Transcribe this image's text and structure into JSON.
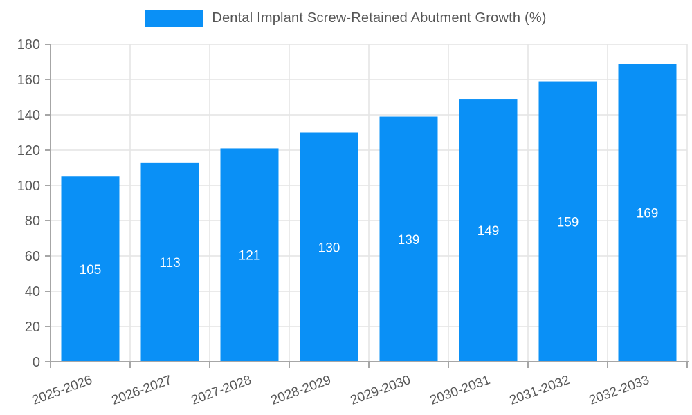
{
  "chart_data": {
    "type": "bar",
    "title": "Dental Implant Screw-Retained Abutment Growth (%)",
    "categories": [
      "2025-2026",
      "2026-2027",
      "2027-2028",
      "2028-2029",
      "2029-2030",
      "2030-2031",
      "2031-2032",
      "2032-2033"
    ],
    "values": [
      105,
      113,
      121,
      130,
      139,
      149,
      159,
      169
    ],
    "xlabel": "",
    "ylabel": "",
    "ylim": [
      0,
      180
    ],
    "ytick_step": 20,
    "yticks": [
      0,
      20,
      40,
      60,
      80,
      100,
      120,
      140,
      160,
      180
    ],
    "grid": true,
    "legend_position": "top-center",
    "colors": {
      "bar": "#0a90f6",
      "bar_label": "#ffffff",
      "axis": "#a6a6a6",
      "grid": "#e4e4e4",
      "tick_label": "#595959",
      "legend_text": "#555555",
      "background": "#ffffff"
    }
  }
}
